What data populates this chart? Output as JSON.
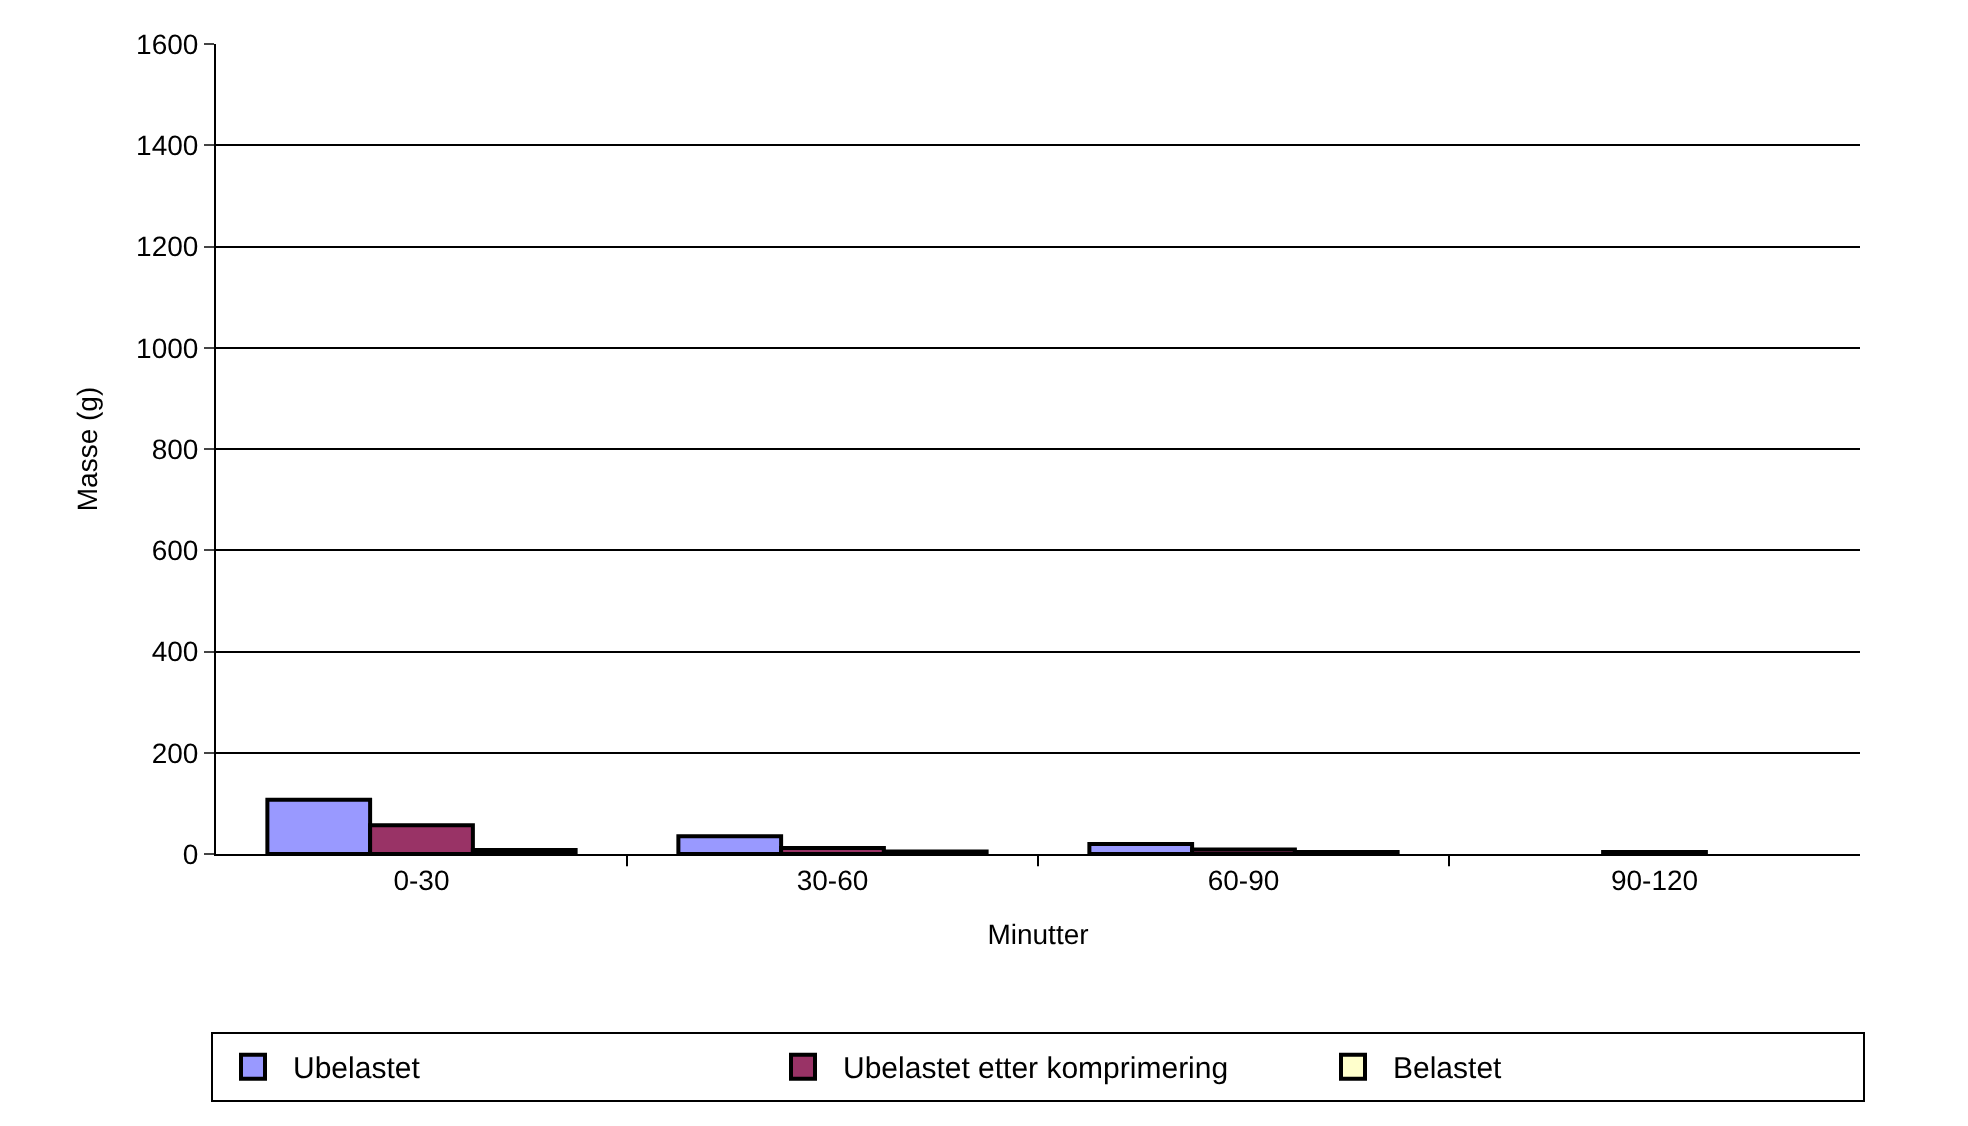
{
  "chart_data": {
    "type": "bar",
    "xlabel": "Minutter",
    "ylabel": "Masse (g)",
    "categories": [
      "0-30",
      "30-60",
      "60-90",
      "90-120"
    ],
    "series": [
      {
        "name": "Ubelastet",
        "color": "#9999ff",
        "values": [
          107,
          35,
          20,
          null
        ]
      },
      {
        "name": "Ubelastet etter komprimering",
        "color": "#993366",
        "values": [
          57,
          12,
          9,
          4
        ]
      },
      {
        "name": "Belastet",
        "color": "#ffffcc",
        "values": [
          8,
          5,
          4,
          null
        ]
      }
    ],
    "ylim": [
      0,
      1600
    ],
    "yticks": [
      0,
      200,
      400,
      600,
      800,
      1000,
      1200,
      1400,
      1600
    ],
    "grid": "y",
    "legend": "bottom"
  }
}
